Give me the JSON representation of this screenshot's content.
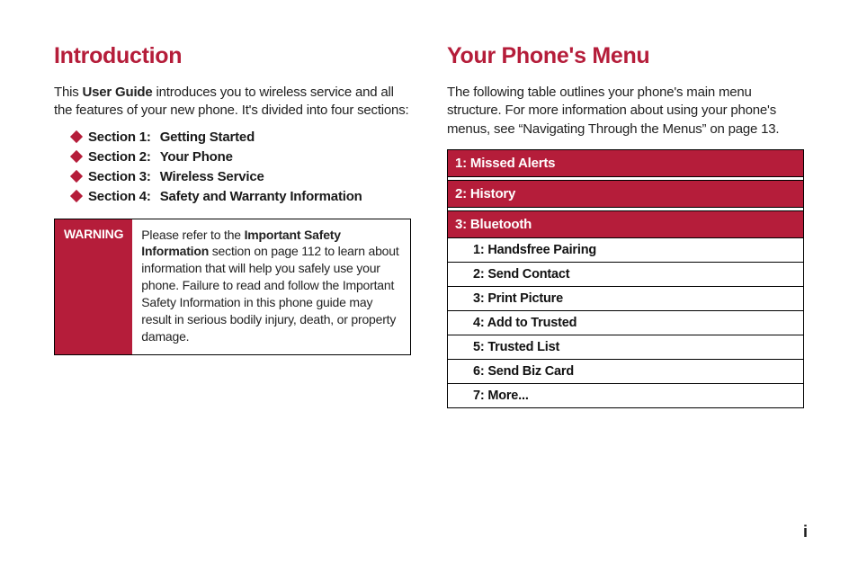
{
  "colors": {
    "accent": "#b51d3a",
    "text": "#1a1a1a",
    "background": "#ffffff",
    "border": "#000000"
  },
  "left": {
    "heading": "Introduction",
    "intro_pre": "This ",
    "intro_bold": "User Guide",
    "intro_post": " introduces you to wireless service and all the features of your new phone. It's divided into four sections:",
    "sections": [
      {
        "pre": "Section 1:",
        "title": "Getting Started"
      },
      {
        "pre": "Section 2:",
        "title": "Your Phone"
      },
      {
        "pre": "Section 3:",
        "title": "Wireless Service"
      },
      {
        "pre": "Section 4:",
        "title": "Safety and Warranty Information"
      }
    ],
    "warning_label": "WARNING",
    "warning_pre": "Please refer to the ",
    "warning_bold": "Important Safety Information",
    "warning_post": " section on page 112 to learn about information that will help you safely use your phone. Failure to read and follow the Important Safety Information in this phone guide may result in serious bodily injury, death, or property damage."
  },
  "right": {
    "heading": "Your Phone's Menu",
    "intro": "The following table outlines your phone's main menu structure. For more information about using your phone's menus, see “Navigating Through the Menus” on page 13.",
    "menu_top": [
      "1: Missed Alerts",
      "2: History",
      "3: Bluetooth"
    ],
    "menu_sub": [
      "1: Handsfree Pairing",
      "2: Send Contact",
      "3: Print Picture",
      "4: Add to Trusted",
      "5: Trusted List",
      "6: Send Biz Card",
      "7: More..."
    ]
  },
  "page_number": "i"
}
